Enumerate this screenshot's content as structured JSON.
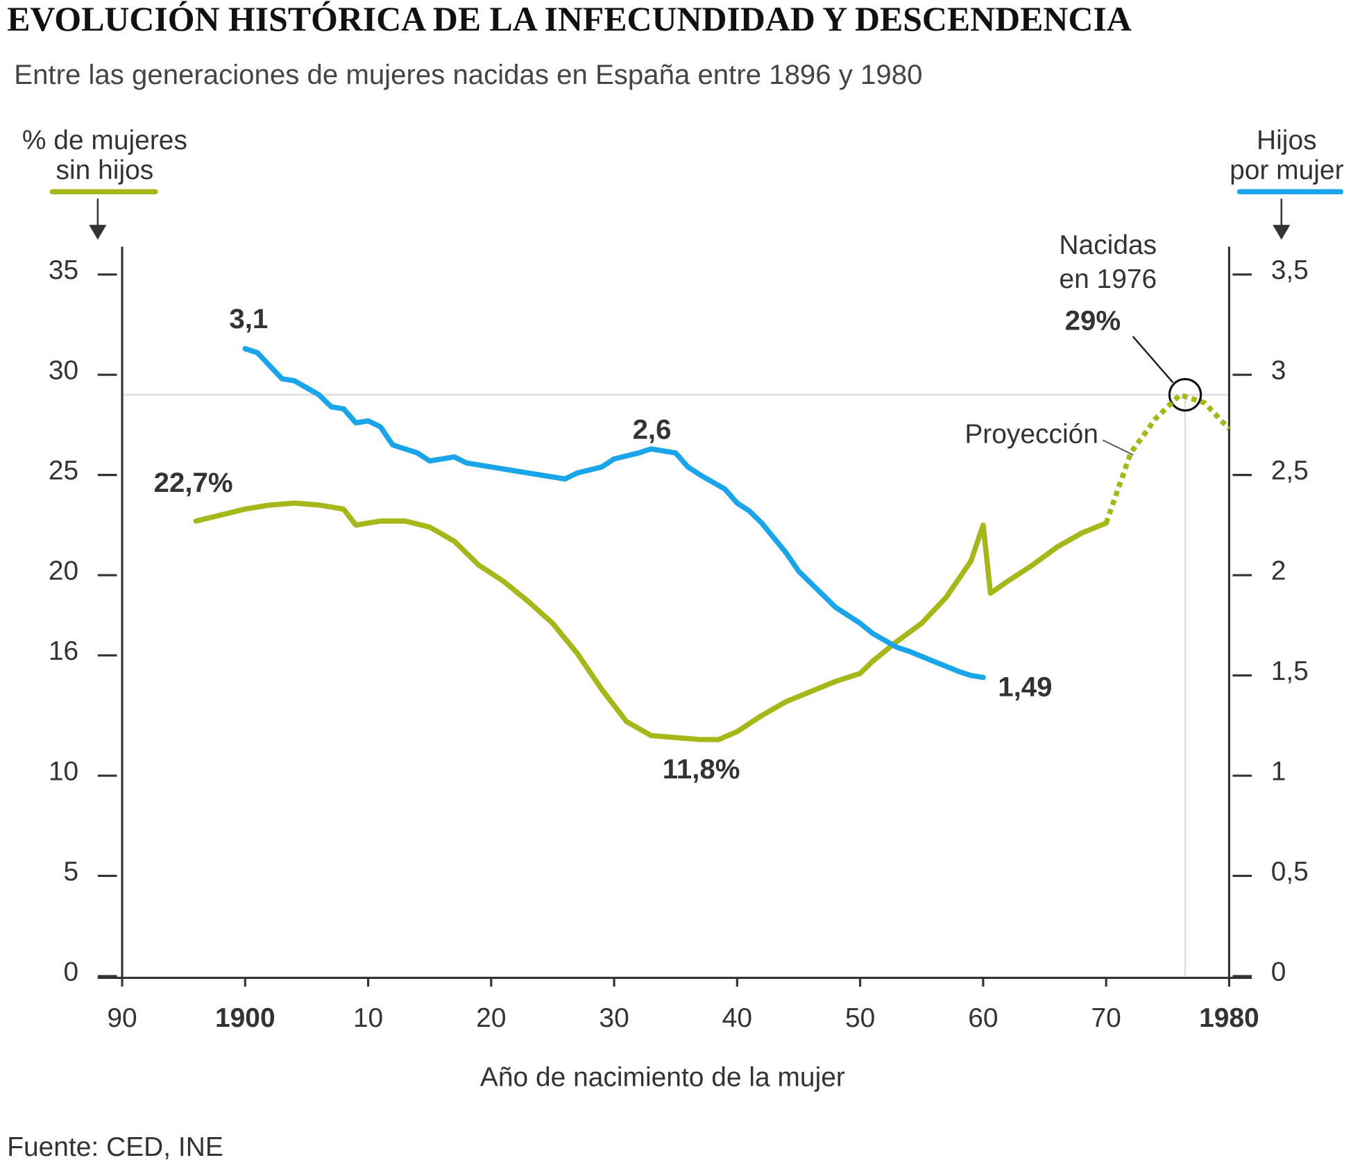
{
  "chart_data": {
    "type": "line",
    "title": "EVOLUCIÓN HISTÓRICA DE LA INFECUNDIDAD Y DESCENDENCIA",
    "subtitle": "Entre las generaciones de mujeres nacidas en España entre 1896 y 1980",
    "ylabel": [
      "% de mujeres",
      "sin hijos"
    ],
    "y2label": [
      "Hijos",
      "por mujer"
    ],
    "xlabel": "Año de nacimiento de la mujer",
    "source": "Fuente: CED, INE",
    "annotation": [
      "Nacidas",
      "en 1976"
    ],
    "xlim": [
      1890,
      1980
    ],
    "xticks": [
      {
        "value": 1890,
        "label": "90"
      },
      1900,
      {
        "value": 1910,
        "label": "10"
      },
      {
        "value": 1920,
        "label": "20"
      },
      {
        "value": 1930,
        "label": "30"
      },
      {
        "value": 1940,
        "label": "40"
      },
      {
        "value": 1950,
        "label": "50"
      },
      {
        "value": 1960,
        "label": "60"
      },
      {
        "value": 1970,
        "label": "70"
      },
      1980
    ],
    "ylim": [
      0,
      35
    ],
    "yticks": [
      0,
      5,
      10,
      16,
      20,
      25,
      30,
      35
    ],
    "y2lim": [
      0,
      3.5
    ],
    "y2ticks": [
      0,
      {
        "value": 0.5,
        "label": "0,5"
      },
      1,
      {
        "value": 1.5,
        "label": "1,5"
      },
      2,
      {
        "value": 2.5,
        "label": "2,5"
      },
      3,
      {
        "value": 3.5,
        "label": "3,5"
      }
    ],
    "series": [
      {
        "color": "#a5b719",
        "axis": "y",
        "x": [
          1896,
          1898,
          1900,
          1902,
          1904,
          1906,
          1908,
          1909,
          1911,
          1913,
          1915,
          1917,
          1919,
          1921,
          1923,
          1925,
          1927,
          1929,
          1931,
          1933,
          1935,
          1937,
          1938.5,
          1940,
          1942,
          1944,
          1946,
          1948,
          1950,
          1951,
          1953,
          1955,
          1957,
          1959,
          1960,
          1960.6,
          1962,
          1964,
          1966,
          1968,
          1970
        ],
        "values": [
          22.7,
          23.0,
          23.3,
          23.5,
          23.6,
          23.5,
          23.3,
          22.5,
          22.7,
          22.7,
          22.4,
          21.7,
          20.5,
          19.7,
          18.7,
          17.6,
          16.1,
          14.3,
          12.7,
          12.0,
          11.9,
          11.8,
          11.8,
          12.2,
          13.0,
          13.7,
          14.2,
          14.7,
          15.1,
          15.7,
          16.7,
          17.6,
          18.9,
          20.7,
          22.5,
          19.1,
          19.7,
          20.5,
          21.4,
          22.1,
          22.6
        ],
        "value_labels": [
          "22,7%",
          null,
          null,
          null,
          null,
          null,
          null,
          null,
          null,
          null,
          null,
          null,
          null,
          null,
          null,
          null,
          null,
          null,
          null,
          null,
          null,
          null,
          "11,8%",
          null,
          null,
          null,
          null,
          null,
          null,
          null,
          null,
          null,
          null,
          null,
          null,
          null,
          null,
          null,
          null,
          null,
          null
        ]
      },
      {
        "color": "#1aa5ea",
        "axis": "y2",
        "x": [
          1900,
          1901,
          1903,
          1904,
          1906,
          1907,
          1908,
          1909,
          1910,
          1911,
          1912,
          1914,
          1915,
          1917,
          1918,
          1920,
          1922,
          1924,
          1926,
          1927,
          1929,
          1930,
          1932,
          1933,
          1935,
          1936,
          1937,
          1939,
          1940,
          1941,
          1942,
          1944,
          1945,
          1947,
          1948,
          1950,
          1951,
          1953,
          1954,
          1956,
          1958,
          1959,
          1960
        ],
        "values": [
          3.13,
          3.11,
          2.98,
          2.97,
          2.9,
          2.84,
          2.83,
          2.76,
          2.77,
          2.74,
          2.65,
          2.61,
          2.57,
          2.59,
          2.56,
          2.54,
          2.52,
          2.5,
          2.48,
          2.51,
          2.54,
          2.58,
          2.61,
          2.63,
          2.61,
          2.54,
          2.5,
          2.43,
          2.36,
          2.32,
          2.26,
          2.11,
          2.02,
          1.9,
          1.84,
          1.76,
          1.71,
          1.64,
          1.62,
          1.57,
          1.52,
          1.5,
          1.49
        ],
        "value_labels": [
          "3,1",
          null,
          null,
          null,
          null,
          null,
          null,
          null,
          null,
          null,
          null,
          null,
          null,
          null,
          null,
          null,
          null,
          null,
          null,
          null,
          null,
          null,
          null,
          "2,6",
          null,
          null,
          null,
          null,
          null,
          null,
          null,
          null,
          null,
          null,
          null,
          null,
          null,
          null,
          null,
          null,
          null,
          null,
          "1,49"
        ]
      },
      {
        "name": "Proyección",
        "color": "#a5b719",
        "axis": "y",
        "dashed": true,
        "x": [
          1970,
          1972,
          1974,
          1976,
          1978,
          1980
        ],
        "values": [
          22.6,
          26.1,
          27.8,
          29.0,
          28.6,
          27.3
        ],
        "value_labels": [
          null,
          null,
          null,
          "29%",
          null,
          null
        ]
      }
    ]
  }
}
